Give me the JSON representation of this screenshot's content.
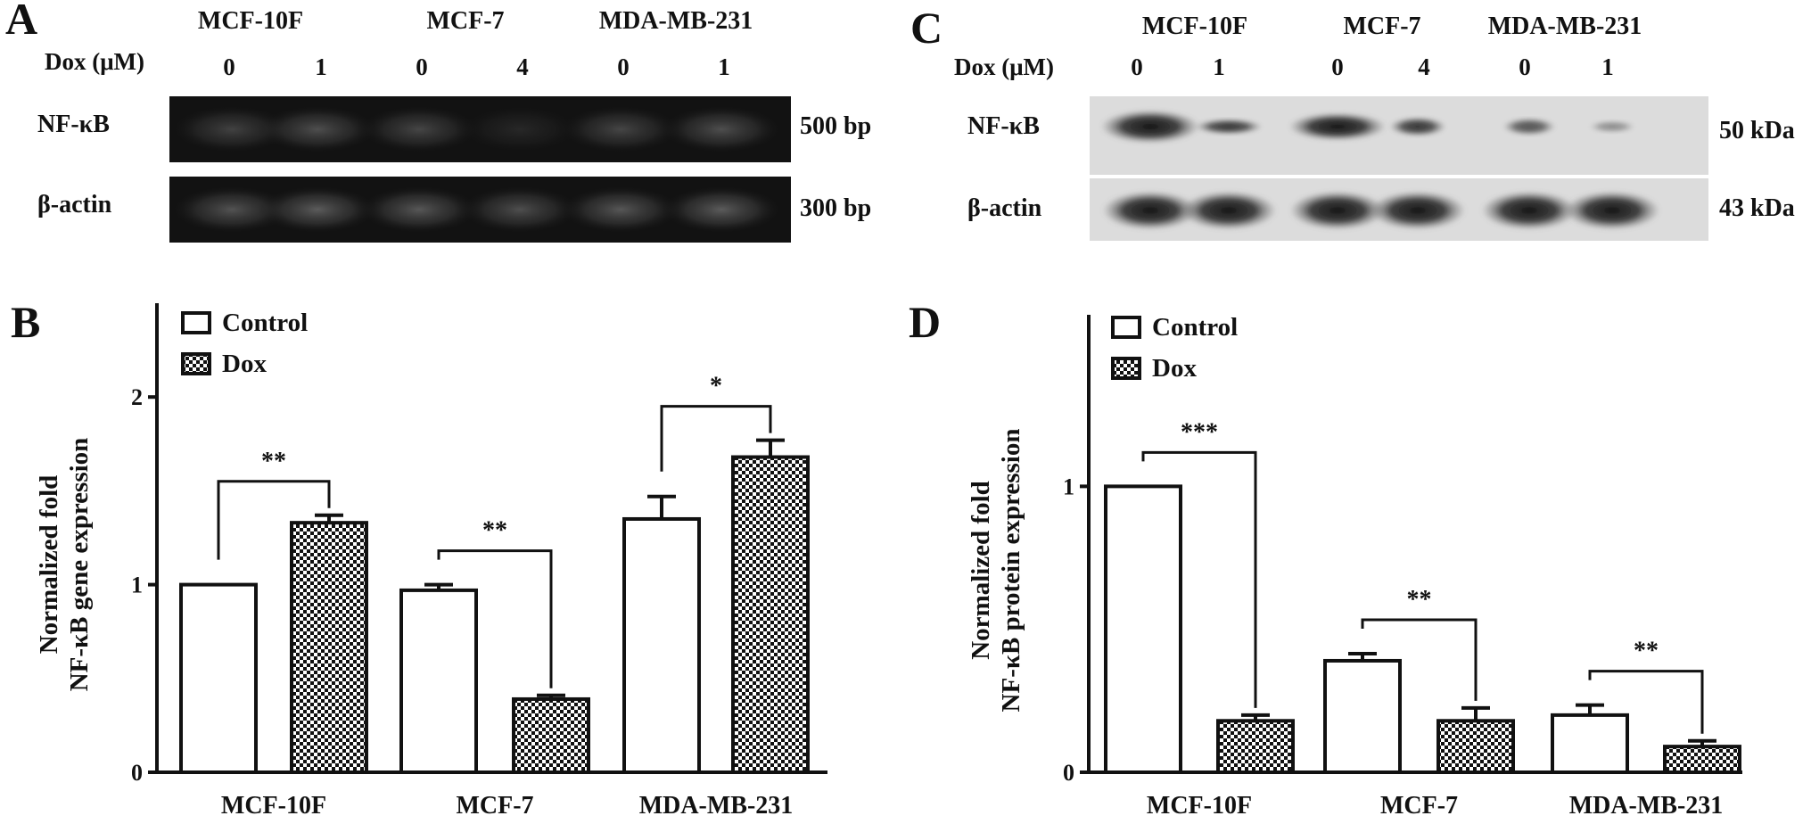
{
  "panel_a": {
    "letter": "A",
    "cell_lines": [
      "MCF-10F",
      "MCF-7",
      "MDA-MB-231"
    ],
    "dose_label": "Dox (μM)",
    "doses": [
      "0",
      "1",
      "0",
      "4",
      "0",
      "1"
    ],
    "rows": [
      {
        "label": "NF-κB",
        "size": "500 bp"
      },
      {
        "label": "β-actin",
        "size": "300 bp"
      }
    ]
  },
  "panel_c": {
    "letter": "C",
    "cell_lines": [
      "MCF-10F",
      "MCF-7",
      "MDA-MB-231"
    ],
    "dose_label": "Dox (μM)",
    "doses": [
      "0",
      "1",
      "0",
      "4",
      "0",
      "1"
    ],
    "rows": [
      {
        "label": "NF-κB",
        "size": "50 kDa"
      },
      {
        "label": "β-actin",
        "size": "43 kDa"
      }
    ]
  },
  "chart_data": [
    {
      "panel": "B",
      "type": "bar",
      "categories": [
        "MCF-10F",
        "MCF-7",
        "MDA-MB-231"
      ],
      "ylabel_line1": "Normalized fold",
      "ylabel_line2": "NF-κB gene expression",
      "ylim": [
        0,
        2.5
      ],
      "yticks": [
        "0",
        "1",
        "2"
      ],
      "legend": [
        "Control",
        "Dox"
      ],
      "legend_position": "top-left",
      "series": [
        {
          "name": "Control",
          "values": [
            1.0,
            0.97,
            1.35
          ],
          "errors": [
            0.0,
            0.03,
            0.12
          ]
        },
        {
          "name": "Dox",
          "values": [
            1.33,
            0.39,
            1.68
          ],
          "errors": [
            0.04,
            0.02,
            0.09
          ]
        }
      ],
      "significance": [
        "**",
        "**",
        "*"
      ],
      "grid": false
    },
    {
      "panel": "D",
      "type": "bar",
      "categories": [
        "MCF-10F",
        "MCF-7",
        "MDA-MB-231"
      ],
      "ylabel_line1": "Normalized fold",
      "ylabel_line2": "NF-κB protein expression",
      "ylim": [
        0,
        1.6
      ],
      "yticks": [
        "0",
        "1"
      ],
      "legend": [
        "Control",
        "Dox"
      ],
      "legend_position": "top-left",
      "series": [
        {
          "name": "Control",
          "values": [
            1.0,
            0.39,
            0.2
          ],
          "errors": [
            0.0,
            0.025,
            0.035
          ]
        },
        {
          "name": "Dox",
          "values": [
            0.18,
            0.18,
            0.09
          ],
          "errors": [
            0.02,
            0.045,
            0.02
          ]
        }
      ],
      "significance": [
        "***",
        "**",
        "**"
      ],
      "grid": false
    }
  ]
}
